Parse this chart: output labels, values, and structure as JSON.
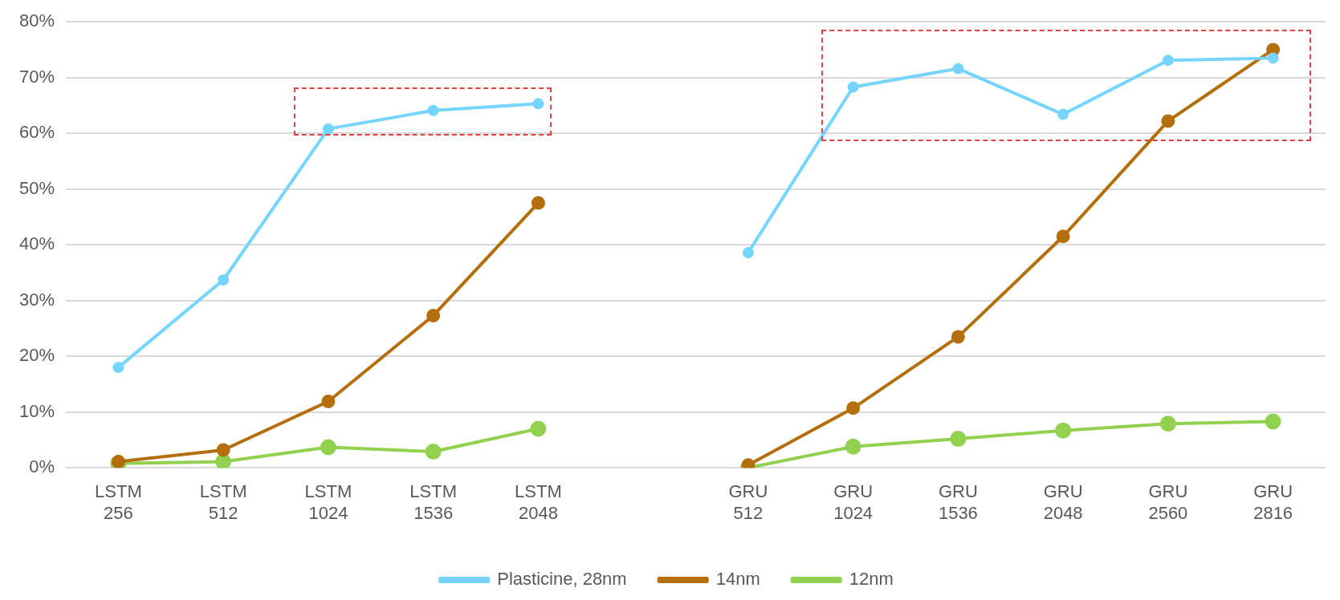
{
  "chart_data": {
    "type": "line",
    "categories": [
      "LSTM 256",
      "LSTM 512",
      "LSTM 1024",
      "LSTM 1536",
      "LSTM 2048",
      null,
      "GRU 512",
      "GRU 1024",
      "GRU 1536",
      "GRU 2048",
      "GRU 2560",
      "GRU 2816"
    ],
    "series": [
      {
        "name": "12nm",
        "color": "#92d050",
        "values": [
          0.8,
          1.1,
          3.7,
          2.9,
          7.0,
          null,
          0,
          3.8,
          5.2,
          6.7,
          7.9,
          8.3
        ]
      },
      {
        "name": "14nm",
        "color": "#b46f0c",
        "values": [
          1.1,
          3.2,
          11.9,
          27.3,
          47.5,
          null,
          0.5,
          10.7,
          23.5,
          41.5,
          62.2,
          75.0
        ]
      },
      {
        "name": "Plasticine, 28nm",
        "color": "#75d5ff",
        "values": [
          18.0,
          33.7,
          60.8,
          64.1,
          65.3,
          null,
          38.6,
          68.3,
          71.6,
          63.4,
          73.1,
          73.5
        ]
      }
    ],
    "ylim": [
      0,
      80
    ],
    "yticks": [
      {
        "value": 0,
        "label": "0%"
      },
      {
        "value": 10,
        "label": "10%"
      },
      {
        "value": 20,
        "label": "20%"
      },
      {
        "value": 30,
        "label": "30%"
      },
      {
        "value": 40,
        "label": "40%"
      },
      {
        "value": 50,
        "label": "50%"
      },
      {
        "value": 60,
        "label": "60%"
      },
      {
        "value": 70,
        "label": "70%"
      },
      {
        "value": 80,
        "label": "80%"
      }
    ],
    "grid": "y",
    "legend": "bottom",
    "marker": "circle",
    "line_style": "solid"
  }
}
